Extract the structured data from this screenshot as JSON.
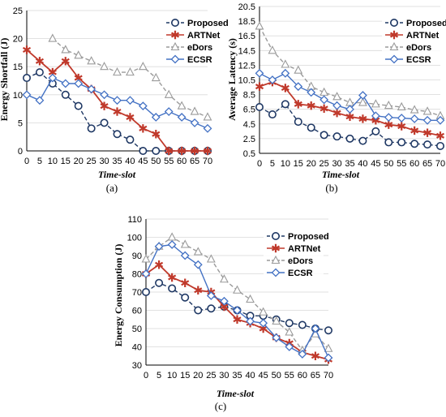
{
  "chart_data": [
    {
      "type": "line",
      "caption": "(a)",
      "xlabel": "Time-slot",
      "ylabel": "Energy Shortfall (J)",
      "x": [
        0,
        5,
        10,
        15,
        20,
        25,
        30,
        35,
        40,
        45,
        50,
        55,
        60,
        65,
        70
      ],
      "ylim": [
        0,
        25
      ],
      "yticks": [
        0,
        5,
        10,
        15,
        20,
        25
      ],
      "legend_position": "top-right",
      "series": [
        {
          "name": "Proposed",
          "color": "#1f3864",
          "marker": "circle",
          "dash": true,
          "values": [
            13,
            14,
            12,
            10,
            8,
            4,
            5,
            3,
            2,
            0,
            0,
            0,
            0,
            0,
            0
          ]
        },
        {
          "name": "ARTNet",
          "color": "#c0392b",
          "marker": "star",
          "dash": false,
          "values": [
            18,
            16,
            14,
            16,
            13,
            11,
            8,
            7,
            6,
            4,
            3,
            0,
            0,
            0,
            0
          ]
        },
        {
          "name": "eDors",
          "color": "#9a9a9a",
          "marker": "triangle",
          "dash": true,
          "values": [
            null,
            null,
            20,
            18,
            17,
            16,
            15,
            14,
            14,
            15,
            13,
            10,
            8,
            7,
            6
          ]
        },
        {
          "name": "ECSR",
          "color": "#4472c4",
          "marker": "diamond",
          "dash": false,
          "values": [
            10,
            9,
            13,
            12,
            12,
            11,
            10,
            9,
            9,
            8,
            6,
            7,
            6,
            5,
            4
          ]
        }
      ]
    },
    {
      "type": "line",
      "caption": "(b)",
      "xlabel": "Time-slot",
      "ylabel": "Average Latency (s)",
      "x": [
        0,
        5,
        10,
        15,
        20,
        25,
        30,
        35,
        40,
        45,
        50,
        55,
        60,
        65,
        70
      ],
      "ylim": [
        0.5,
        20.5
      ],
      "yticks": [
        0.5,
        2.5,
        4.5,
        6.5,
        8.5,
        10.5,
        12.5,
        14.5,
        16.5,
        18.5,
        20.5
      ],
      "legend_position": "top-right",
      "series": [
        {
          "name": "Proposed",
          "color": "#1f3864",
          "marker": "circle",
          "dash": true,
          "values": [
            6.8,
            5.8,
            7.2,
            4.8,
            4.0,
            3.0,
            2.8,
            2.5,
            2.2,
            3.5,
            2.0,
            2.0,
            1.8,
            1.7,
            1.5
          ]
        },
        {
          "name": "ARTNet",
          "color": "#c0392b",
          "marker": "star",
          "dash": false,
          "values": [
            9.6,
            10.2,
            9.4,
            7.2,
            7.0,
            6.6,
            6.0,
            5.5,
            5.2,
            5.0,
            4.4,
            4.2,
            3.6,
            3.3,
            2.9
          ]
        },
        {
          "name": "eDors",
          "color": "#9a9a9a",
          "marker": "triangle",
          "dash": true,
          "values": [
            17.8,
            14.5,
            12.6,
            11.8,
            9.6,
            8.8,
            8.2,
            7.4,
            7.4,
            7.2,
            7.0,
            6.8,
            6.4,
            6.2,
            5.6
          ]
        },
        {
          "name": "ECSR",
          "color": "#4472c4",
          "marker": "diamond",
          "dash": false,
          "values": [
            11.4,
            10.5,
            11.4,
            9.6,
            8.8,
            7.8,
            7.0,
            6.5,
            8.4,
            5.6,
            5.4,
            5.3,
            5.2,
            5.0,
            5.0
          ]
        }
      ]
    },
    {
      "type": "line",
      "caption": "(c)",
      "xlabel": "Time-slot",
      "ylabel": "Energy Consumption (J)",
      "x": [
        0,
        5,
        10,
        15,
        20,
        25,
        30,
        35,
        40,
        45,
        50,
        55,
        60,
        65,
        70
      ],
      "ylim": [
        30,
        110
      ],
      "yticks": [
        30,
        40,
        50,
        60,
        70,
        80,
        90,
        100,
        110
      ],
      "legend_position": "top-right",
      "series": [
        {
          "name": "Proposed",
          "color": "#1f3864",
          "marker": "circle",
          "dash": true,
          "values": [
            70,
            75,
            72,
            67,
            60,
            61,
            62,
            60,
            57,
            57,
            55,
            53,
            52,
            50,
            49
          ]
        },
        {
          "name": "ARTNet",
          "color": "#c0392b",
          "marker": "star",
          "dash": false,
          "values": [
            80,
            85,
            78,
            75,
            71,
            70,
            62,
            55,
            53,
            50,
            45,
            42,
            37,
            35,
            33
          ]
        },
        {
          "name": "eDors",
          "color": "#9a9a9a",
          "marker": "triangle",
          "dash": true,
          "values": [
            88,
            95,
            100,
            96,
            92,
            88,
            77,
            71,
            66,
            59,
            54,
            48,
            38,
            47,
            39
          ]
        },
        {
          "name": "ECSR",
          "color": "#4472c4",
          "marker": "diamond",
          "dash": false,
          "values": [
            80,
            95,
            96,
            90,
            85,
            68,
            65,
            60,
            54,
            53,
            45,
            40,
            36,
            50,
            34
          ]
        }
      ]
    }
  ]
}
